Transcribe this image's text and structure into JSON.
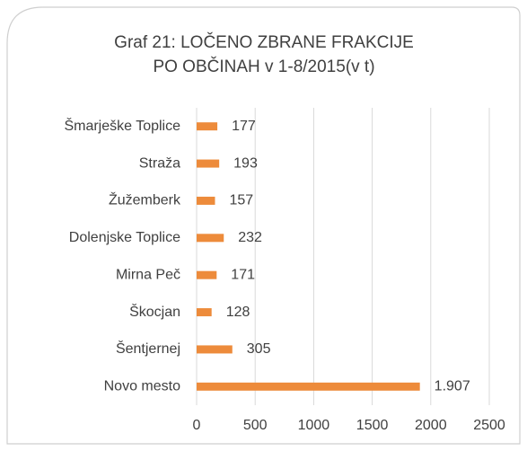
{
  "chart_data": {
    "type": "hbar",
    "title_lines": [
      "Graf 21: LOČENO ZBRANE FRAKCIJE",
      "PO OBČINAH v 1-8/2015(v t)"
    ],
    "categories": [
      "Šmarješke Toplice",
      "Straža",
      "Žužemberk",
      "Dolenjske Toplice",
      "Mirna Peč",
      "Škocjan",
      "Šentjernej",
      "Novo mesto"
    ],
    "values": [
      177,
      193,
      157,
      232,
      171,
      128,
      305,
      1907
    ],
    "value_labels": [
      "177",
      "193",
      "157",
      "232",
      "171",
      "128",
      "305",
      "1.907"
    ],
    "color": "#ED8B3B",
    "xlim": [
      0,
      2500
    ],
    "xticks": [
      0,
      500,
      1000,
      1500,
      2000,
      2500
    ],
    "grid": true
  }
}
